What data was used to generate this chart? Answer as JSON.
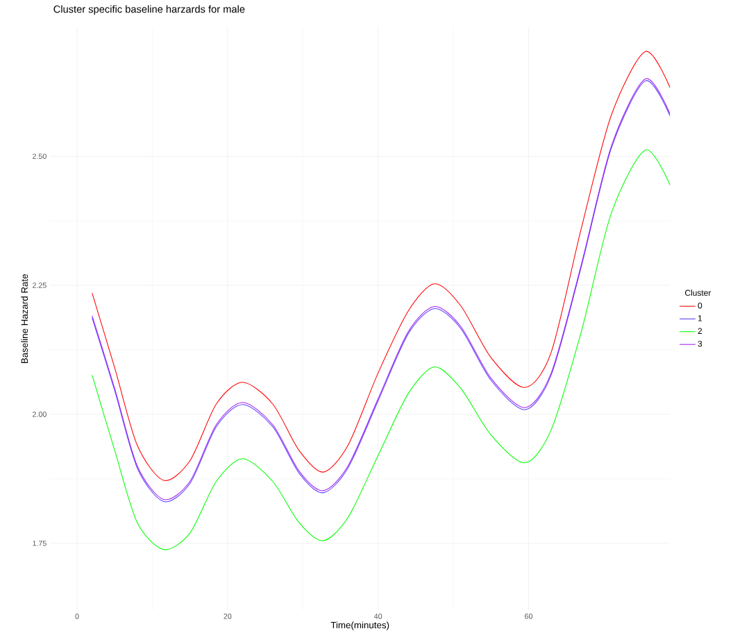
{
  "chart_data": {
    "type": "line",
    "title": "Cluster specific baseline harzards for male",
    "xlabel": "Time(minutes)",
    "ylabel": "Baseline Hazard Rate",
    "legend_title": "Cluster",
    "legend": "right",
    "grid": true,
    "marker": "none",
    "line_style": "solid",
    "x": [
      2,
      5,
      8,
      11.5,
      15,
      18.5,
      22,
      26,
      29.5,
      32.7,
      36,
      40,
      44,
      47.5,
      51,
      55,
      59.5,
      63,
      67,
      71,
      75.5,
      78.8
    ],
    "xlim": [
      -3.6,
      78.8
    ],
    "xticks": [
      0,
      20,
      40,
      60
    ],
    "ylim": [
      1.62,
      2.75
    ],
    "yticks": [
      {
        "value": 1.75,
        "label": "1.75"
      },
      {
        "value": 2.0,
        "label": "2.00"
      },
      {
        "value": 2.25,
        "label": "2.25"
      },
      {
        "value": 2.5,
        "label": "2.50"
      }
    ],
    "series": [
      {
        "name": "0",
        "color": "#ff0000",
        "values": [
          2.235,
          2.09,
          1.94,
          1.872,
          1.91,
          2.02,
          2.062,
          2.02,
          1.93,
          1.888,
          1.94,
          2.08,
          2.2,
          2.253,
          2.21,
          2.11,
          2.052,
          2.12,
          2.36,
          2.58,
          2.703,
          2.633
        ]
      },
      {
        "name": "1",
        "color": "#5a3cff",
        "values": [
          2.187,
          2.046,
          1.896,
          1.831,
          1.866,
          1.976,
          2.019,
          1.976,
          1.886,
          1.848,
          1.896,
          2.026,
          2.156,
          2.205,
          2.166,
          2.066,
          2.009,
          2.076,
          2.286,
          2.516,
          2.646,
          2.578
        ]
      },
      {
        "name": "2",
        "color": "#00ff00",
        "values": [
          2.076,
          1.93,
          1.79,
          1.738,
          1.77,
          1.87,
          1.914,
          1.87,
          1.79,
          1.755,
          1.8,
          1.92,
          2.04,
          2.092,
          2.05,
          1.96,
          1.906,
          1.97,
          2.16,
          2.39,
          2.512,
          2.444
        ]
      },
      {
        "name": "3",
        "color": "#a020f0",
        "values": [
          2.191,
          2.05,
          1.9,
          1.835,
          1.87,
          1.98,
          2.023,
          1.98,
          1.89,
          1.852,
          1.9,
          2.03,
          2.16,
          2.209,
          2.17,
          2.07,
          2.013,
          2.08,
          2.29,
          2.52,
          2.65,
          2.582
        ]
      }
    ]
  }
}
